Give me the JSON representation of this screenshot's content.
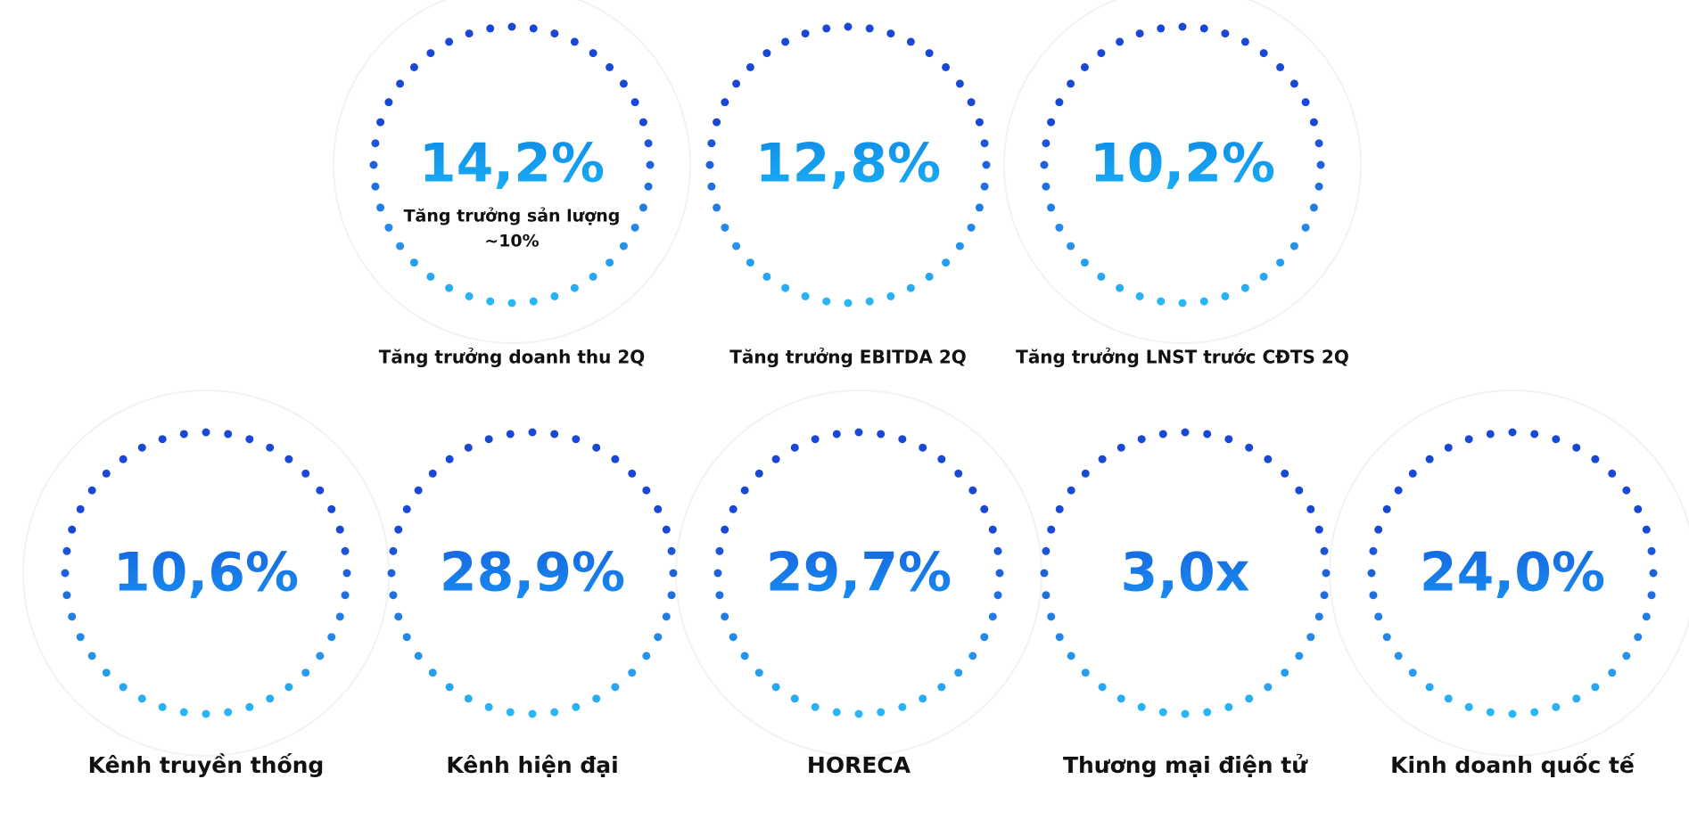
{
  "top": [
    {
      "value": "14,2%",
      "label": "Tăng trưởng doanh thu 2Q",
      "note": [
        "Tăng trưởng sản lượng",
        "~10%"
      ]
    },
    {
      "value": "12,8%",
      "label": "Tăng trưởng EBITDA 2Q"
    },
    {
      "value": "10,2%",
      "label": "Tăng trưởng LNST trước CĐTS 2Q"
    }
  ],
  "bottom": [
    {
      "value": "10,6%",
      "label": "Kênh truyền thống"
    },
    {
      "value": "28,9%",
      "label": "Kênh hiện đại"
    },
    {
      "value": "29,7%",
      "label": "HORECA"
    },
    {
      "value": "3,0x",
      "label": "Thương mại điện tử"
    },
    {
      "value": "24,0%",
      "label": "Kinh doanh quốc tế"
    }
  ]
}
